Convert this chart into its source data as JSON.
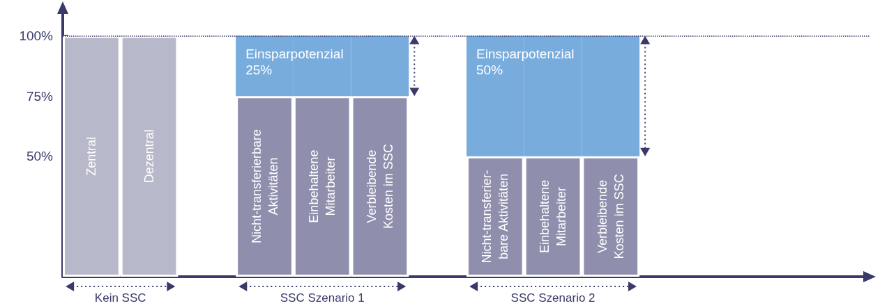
{
  "chart_data": {
    "type": "bar",
    "stacked": true,
    "tick_labels": "y",
    "categories": [
      "Zentral",
      "Dezentral",
      null,
      "Nicht-transferierbare\nAktivitäten",
      "Einbehaltene\nMitarbeiter",
      "Verbleibende\nKosten im SSC",
      null,
      "Nicht-transferier-\nbare Aktivitäten",
      "Einbehaltene\nMitarbeiter",
      "Verbleibende\nKosten im SSC",
      null,
      null,
      null,
      null
    ],
    "series": [
      {
        "colors": [
          "#b8b8cb",
          "#b8b8cb",
          null,
          "#8f8fad",
          "#8f8fad",
          "#8f8fad",
          null,
          "#8f8fad",
          "#8f8fad",
          "#8f8fad",
          null,
          null,
          null,
          null
        ],
        "values": [
          100,
          100,
          null,
          75,
          75,
          75,
          null,
          50,
          50,
          50,
          null,
          null,
          null,
          null
        ]
      },
      {
        "color": "#78acdc",
        "values": [
          null,
          null,
          null,
          25,
          25,
          25,
          null,
          50,
          50,
          50,
          null,
          null,
          null,
          null
        ],
        "value_labels": [
          null,
          null,
          null,
          "Einsparpotenzial 25%",
          null,
          null,
          null,
          "Einsparpotenzial 50%",
          null,
          null,
          null,
          null,
          null,
          null
        ]
      }
    ],
    "ylim": [
      0,
      112
    ],
    "yticks": [
      {
        "value": 50,
        "label": "50%"
      },
      {
        "value": 75,
        "label": "75%"
      },
      {
        "value": 100,
        "label": "100%"
      }
    ],
    "ref_lines": [
      {
        "axis": "y",
        "value": 100,
        "line_style": "dotted",
        "color": "#3a3a6a"
      }
    ],
    "annotations": [
      "Kein SSC",
      "SSC Szenario 1",
      "SSC Szenario 2"
    ]
  }
}
